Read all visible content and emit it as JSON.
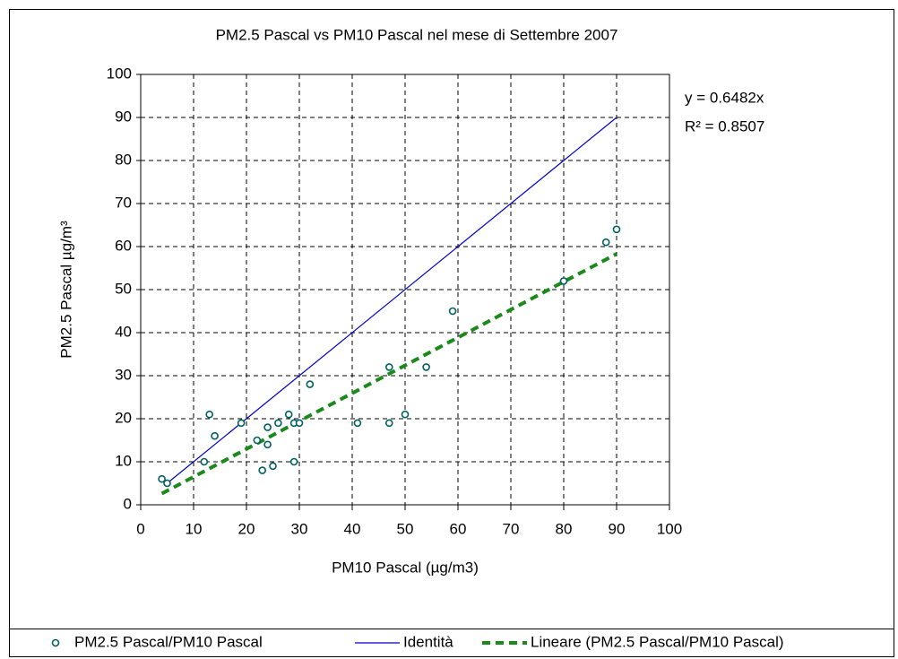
{
  "chart_data": {
    "type": "scatter",
    "title": "PM2.5 Pascal vs PM10 Pascal nel mese di Settembre 2007",
    "x_label": "PM10 Pascal (µg/m3)",
    "y_label": "PM2.5 Pascal µg/m³",
    "xlim": [
      0,
      100
    ],
    "xticks": [
      0,
      10,
      20,
      30,
      40,
      50,
      60,
      70,
      80,
      90,
      100
    ],
    "ylim": [
      0,
      100
    ],
    "yticks": [
      0,
      10,
      20,
      30,
      40,
      50,
      60,
      70,
      80,
      90,
      100
    ],
    "grid": true,
    "legend": "bottom",
    "annotations": [
      "y = 0.6482x",
      "R² = 0.8507"
    ],
    "series": [
      {
        "name": "PM2.5 Pascal/PM10 Pascal",
        "kind": "points",
        "color": "#006060",
        "x": [
          4,
          5,
          12,
          13,
          14,
          19,
          22,
          23,
          24,
          24,
          25,
          26,
          28,
          29,
          29,
          30,
          32,
          41,
          47,
          47,
          50,
          54,
          59,
          80,
          88,
          90
        ],
        "values": [
          6,
          5,
          10,
          21,
          16,
          19,
          15,
          8,
          18,
          14,
          9,
          19,
          21,
          10,
          19,
          19,
          28,
          19,
          32,
          19,
          21,
          32,
          45,
          52,
          61,
          64
        ]
      },
      {
        "name": "Identità",
        "kind": "line",
        "color": "#0000cc",
        "x": [
          5,
          90
        ],
        "values": [
          5,
          90
        ]
      },
      {
        "name": "Lineare (PM2.5 Pascal/PM10 Pascal)",
        "kind": "dashed",
        "color": "#1a8a1a",
        "x": [
          4,
          90
        ],
        "values": [
          2.6,
          58.3
        ]
      }
    ]
  }
}
